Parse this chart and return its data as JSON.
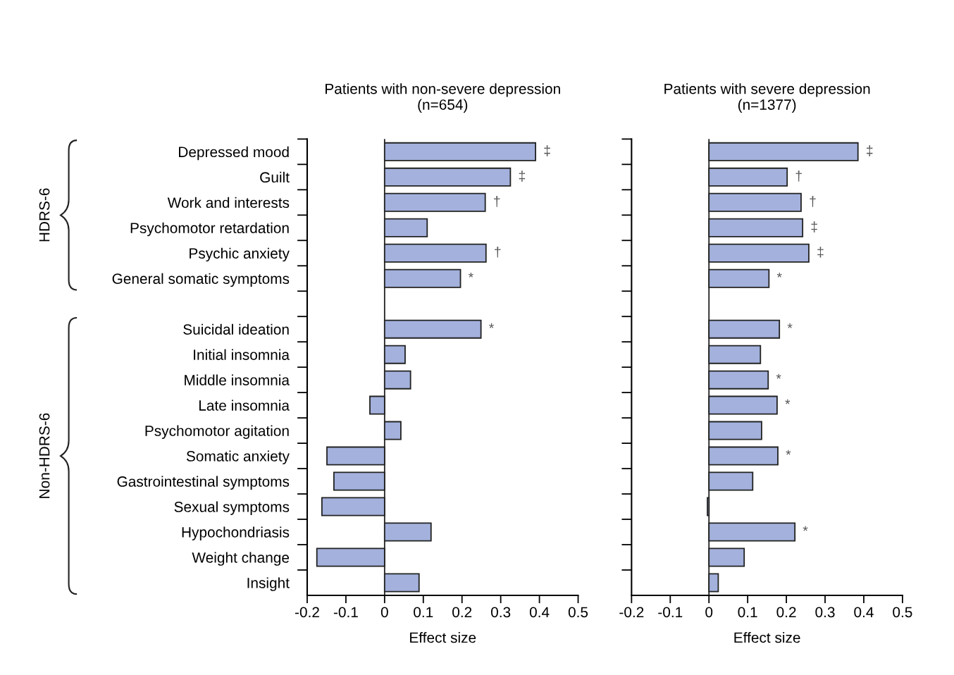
{
  "chart_data": [
    {
      "type": "bar",
      "orientation": "horizontal",
      "title": "Patients with non-severe depression\n(n=654)",
      "xlabel": "Effect size",
      "categories": [
        "Depressed mood",
        "Guilt",
        "Work and interests",
        "Psychomotor retardation",
        "Psychic anxiety",
        "General somatic symptoms",
        null,
        "Suicidal ideation",
        "Initial insomnia",
        "Middle insomnia",
        "Late insomnia",
        "Psychomotor agitation",
        "Somatic anxiety",
        "Gastrointestinal symptoms",
        "Sexual symptoms",
        "Hypochondriasis",
        "Weight change",
        "Insight"
      ],
      "values": [
        0.39,
        0.325,
        0.26,
        0.11,
        0.262,
        0.196,
        null,
        0.249,
        0.053,
        0.067,
        -0.038,
        0.042,
        -0.149,
        -0.131,
        -0.162,
        0.12,
        -0.175,
        0.089
      ],
      "color": "#a3b1dc",
      "xlim": [
        -0.2,
        0.5
      ],
      "xticks": [
        -0.2,
        -0.1,
        0,
        0.1,
        0.2,
        0.3,
        0.4,
        0.5
      ],
      "ref_lines": [
        {
          "axis": "x",
          "value": 0
        }
      ],
      "grid": false,
      "legend": false,
      "annotations": [
        "HDRS-6",
        "Non-HDRS-6",
        {
          "text": "‡",
          "x": 0.39,
          "y": "Depressed mood"
        },
        {
          "text": "‡",
          "x": 0.325,
          "y": "Guilt"
        },
        {
          "text": "†",
          "x": 0.26,
          "y": "Work and interests"
        },
        {
          "text": "†",
          "x": 0.262,
          "y": "Psychic anxiety"
        },
        {
          "text": "*",
          "x": 0.196,
          "y": "General somatic symptoms"
        },
        {
          "text": "*",
          "x": 0.249,
          "y": "Suicidal ideation"
        }
      ]
    },
    {
      "type": "bar",
      "orientation": "horizontal",
      "title": "Patients with severe depression\n(n=1377)",
      "xlabel": "Effect size",
      "tick_labels": "x",
      "categories": [
        "Depressed mood",
        "Guilt",
        "Work and interests",
        "Psychomotor retardation",
        "Psychic anxiety",
        "General somatic symptoms",
        null,
        "Suicidal ideation",
        "Initial insomnia",
        "Middle insomnia",
        "Late insomnia",
        "Psychomotor agitation",
        "Somatic anxiety",
        "Gastrointestinal symptoms",
        "Sexual symptoms",
        "Hypochondriasis",
        "Weight change",
        "Insight"
      ],
      "values": [
        0.385,
        0.202,
        0.238,
        0.242,
        0.258,
        0.155,
        null,
        0.182,
        0.133,
        0.153,
        0.176,
        0.136,
        0.178,
        0.113,
        -0.004,
        0.222,
        0.091,
        0.024
      ],
      "color": "#a3b1dc",
      "xlim": [
        -0.2,
        0.5
      ],
      "xticks": [
        -0.2,
        -0.1,
        0,
        0.1,
        0.2,
        0.3,
        0.4,
        0.5
      ],
      "ref_lines": [
        {
          "axis": "x",
          "value": 0
        }
      ],
      "grid": false,
      "legend": false,
      "annotations": [
        {
          "text": "‡",
          "x": 0.385,
          "y": "Depressed mood"
        },
        {
          "text": "†",
          "x": 0.202,
          "y": "Guilt"
        },
        {
          "text": "†",
          "x": 0.238,
          "y": "Work and interests"
        },
        {
          "text": "‡",
          "x": 0.242,
          "y": "Psychomotor retardation"
        },
        {
          "text": "‡",
          "x": 0.258,
          "y": "Psychic anxiety"
        },
        {
          "text": "*",
          "x": 0.155,
          "y": "General somatic symptoms"
        },
        {
          "text": "*",
          "x": 0.182,
          "y": "Suicidal ideation"
        },
        {
          "text": "*",
          "x": 0.153,
          "y": "Middle insomnia"
        },
        {
          "text": "*",
          "x": 0.176,
          "y": "Late insomnia"
        },
        {
          "text": "*",
          "x": 0.178,
          "y": "Somatic anxiety"
        },
        {
          "text": "*",
          "x": 0.222,
          "y": "Hypochondriasis"
        }
      ]
    }
  ]
}
